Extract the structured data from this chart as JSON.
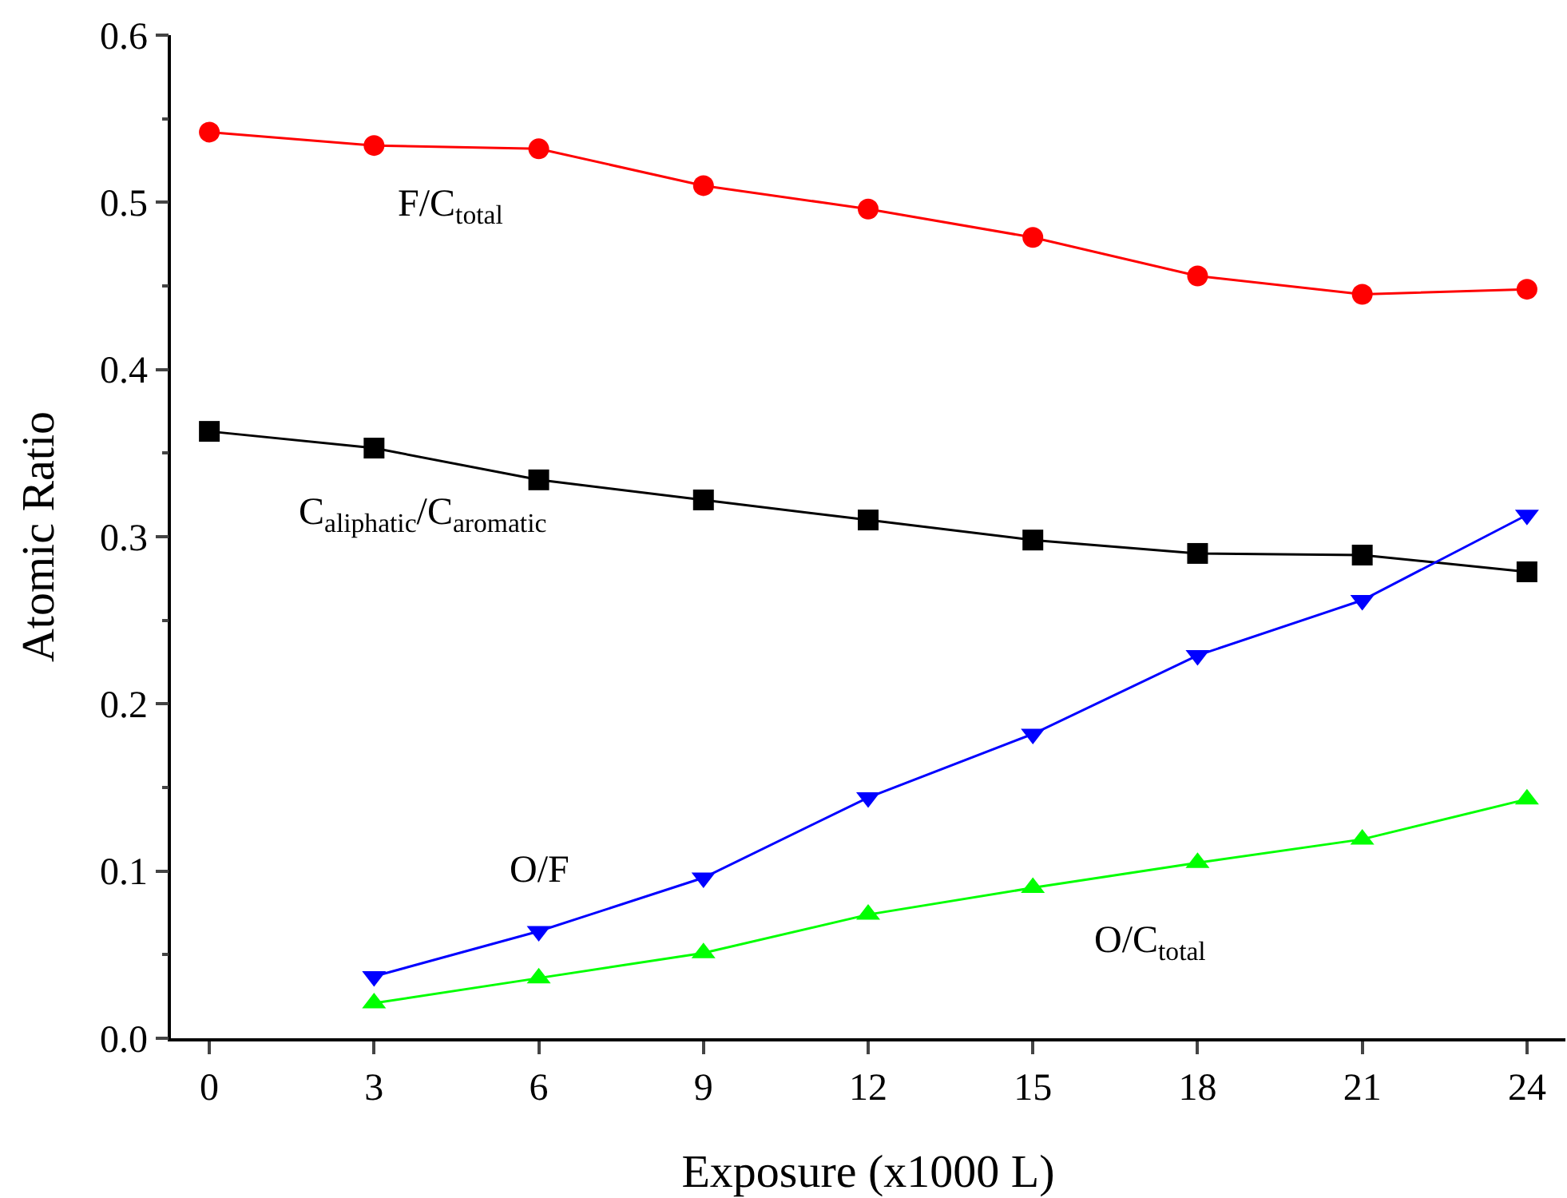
{
  "chart_data": {
    "type": "line",
    "xlabel": "Exposure (x1000 L)",
    "ylabel": "Atomic Ratio",
    "xlim": [
      -0.7,
      24.7
    ],
    "xticks": [
      0,
      3,
      6,
      9,
      12,
      15,
      18,
      21,
      24
    ],
    "ylim": [
      0,
      0.6
    ],
    "yticks": [
      {
        "value": 0,
        "label": "0.0"
      },
      0.1,
      0.2,
      0.3,
      0.4,
      0.5,
      0.6
    ],
    "legend": false,
    "line_style": "solid",
    "series": [
      {
        "name": "F/C$_{total}$",
        "color": "#ff0000",
        "marker": "circle",
        "x": [
          0,
          3,
          6,
          9,
          12,
          15,
          18,
          21,
          24
        ],
        "values": [
          0.542,
          0.534,
          0.532,
          0.51,
          0.496,
          0.479,
          0.456,
          0.445,
          0.448
        ]
      },
      {
        "name": "C$_{aliphatic}$/C$_{aromatic}$",
        "color": "#000000",
        "marker": "square",
        "x": [
          0,
          3,
          6,
          9,
          12,
          15,
          18,
          21,
          24
        ],
        "values": [
          0.363,
          0.353,
          0.334,
          0.322,
          0.31,
          0.298,
          0.29,
          0.289,
          0.279
        ]
      },
      {
        "name": "O/F",
        "color": "#0000ff",
        "marker": "triangle-down",
        "x": [
          3,
          6,
          9,
          12,
          15,
          18,
          21,
          24
        ],
        "values": [
          0.037,
          0.064,
          0.096,
          0.144,
          0.182,
          0.229,
          0.262,
          0.313
        ]
      },
      {
        "name": "O/C$_{total}$",
        "color": "#00ff00",
        "marker": "triangle-up",
        "x": [
          3,
          6,
          9,
          12,
          15,
          18,
          21,
          24
        ],
        "values": [
          0.021,
          0.036,
          0.051,
          0.074,
          0.09,
          0.105,
          0.119,
          0.143
        ]
      }
    ]
  }
}
